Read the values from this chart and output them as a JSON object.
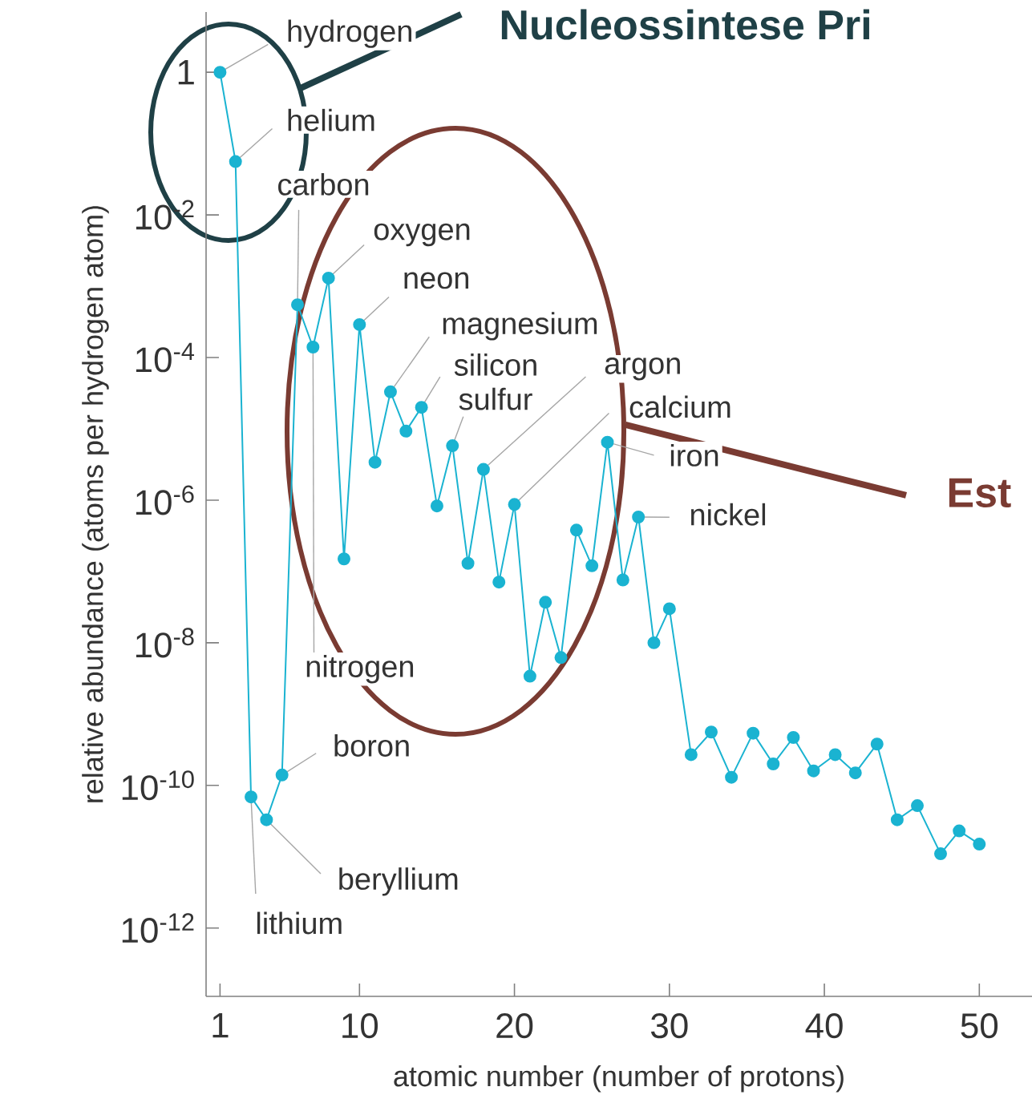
{
  "chart_data": {
    "type": "line",
    "xlabel": "atomic number (number of protons)",
    "ylabel": "relative abundance (atoms per hydrogen atom)",
    "log": "y",
    "grid": false,
    "marker": "circle",
    "xlim": [
      0.1,
      53.4
    ],
    "ylim": [
      1.1e-13,
      7
    ],
    "xticks": [
      1,
      10,
      20,
      30,
      40,
      50
    ],
    "yticks": [
      1,
      {
        "value": 0.01,
        "label": "10$^{-2}$"
      },
      {
        "value": 0.0001,
        "label": "10$^{-4}$"
      },
      {
        "value": 1e-06,
        "label": "10$^{-6}$"
      },
      {
        "value": 1e-08,
        "label": "10$^{-8}$"
      },
      {
        "value": 1e-10,
        "label": "10$^{-10}$"
      },
      {
        "value": 1e-12,
        "label": "10$^{-12}$"
      }
    ],
    "series": [
      {
        "color": "#1ab3d1",
        "x": [
          1,
          2,
          3,
          4,
          5,
          6,
          7,
          8,
          9,
          10,
          11,
          12,
          13,
          14,
          15,
          16,
          17,
          18,
          19,
          20,
          21,
          22,
          23,
          24,
          25,
          26,
          27,
          28,
          29,
          30,
          31.4,
          32.7,
          34.0,
          35.4,
          36.7,
          38.0,
          39.3,
          40.7,
          42.0,
          43.4,
          44.7,
          46.0,
          47.5,
          48.7,
          50
        ],
        "values": [
          1,
          0.056,
          6.9e-11,
          3.3e-11,
          1.4e-10,
          0.00055,
          0.00014,
          0.0013,
          1.5e-07,
          0.00029,
          3.4e-06,
          3.3e-05,
          9.3e-06,
          2e-05,
          8.3e-07,
          5.8e-06,
          1.3e-07,
          2.7e-06,
          7.1e-08,
          8.7e-07,
          3.4e-09,
          3.7e-08,
          6.2e-09,
          3.8e-07,
          1.2e-07,
          6.5e-06,
          7.6e-08,
          5.8e-07,
          1e-08,
          3e-08,
          2.7e-10,
          5.6e-10,
          1.3e-10,
          5.4e-10,
          2e-10,
          4.7e-10,
          1.6e-10,
          2.7e-10,
          1.5e-10,
          3.8e-10,
          3.3e-11,
          5.2e-11,
          1.1e-11,
          2.3e-11,
          1.5e-11
        ]
      }
    ],
    "annotations": [
      {
        "text": "hydrogen",
        "x": 1,
        "y": 1
      },
      {
        "text": "helium",
        "x": 2,
        "y": 0.056
      },
      {
        "text": "carbon",
        "x": 6,
        "y": 0.00055
      },
      {
        "text": "oxygen",
        "x": 8,
        "y": 0.0013
      },
      {
        "text": "neon",
        "x": 10,
        "y": 0.00029
      },
      {
        "text": "magnesium",
        "x": 12,
        "y": 3.3e-05
      },
      {
        "text": "silicon",
        "x": 14,
        "y": 2e-05
      },
      {
        "text": "sulfur",
        "x": 16,
        "y": 5.8e-06
      },
      {
        "text": "argon",
        "x": 18,
        "y": 2.7e-06
      },
      {
        "text": "calcium",
        "x": 20,
        "y": 8.7e-07
      },
      {
        "text": "iron",
        "x": 26,
        "y": 6.5e-06
      },
      {
        "text": "nickel",
        "x": 28,
        "y": 5.8e-07
      },
      {
        "text": "nitrogen",
        "x": 7,
        "y": 0.00014
      },
      {
        "text": "boron",
        "x": 5,
        "y": 1.4e-10
      },
      {
        "text": "beryllium",
        "x": 4,
        "y": 3.3e-11
      },
      {
        "text": "lithium",
        "x": 3,
        "y": 6.9e-11
      },
      "Nucleossintese Pri",
      "Est"
    ]
  }
}
